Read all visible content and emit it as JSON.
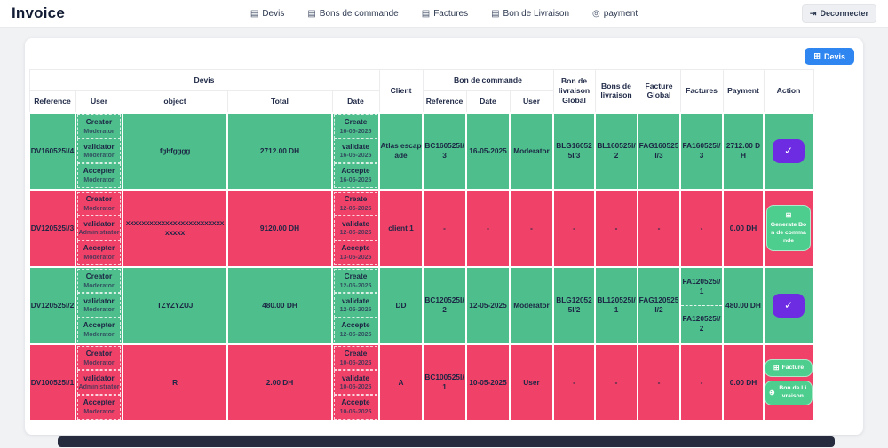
{
  "navbar": {
    "title": "Invoice",
    "items": [
      {
        "label": "Devis",
        "icon": "document"
      },
      {
        "label": "Bons de commande",
        "icon": "document"
      },
      {
        "label": "Factures",
        "icon": "document"
      },
      {
        "label": "Bon de Livraison",
        "icon": "document"
      },
      {
        "label": "payment",
        "icon": "coin"
      }
    ],
    "logout": {
      "label": "Deconnecter",
      "icon": "logout"
    }
  },
  "toolbar": {
    "new_devis_label": "Devis",
    "icon": "plus-square"
  },
  "colors": {
    "green_row": "#4dbe8c",
    "pink_row": "#f04169",
    "purple_button": "#6d2be2",
    "blue_button": "#2f86f0",
    "action_green_button": "#4ece8e",
    "navy_text": "#1c2644"
  },
  "table": {
    "headers": {
      "devis_group": "Devis",
      "client": "Client",
      "bc_group": "Bon de commande",
      "devis_cols": {
        "reference": "Reference",
        "user": "User",
        "object": "object",
        "total": "Total",
        "date": "Date"
      },
      "bc_cols": {
        "reference": "Reference",
        "date": "Date",
        "user": "User"
      },
      "blg": "Bon de livraison Global",
      "bl": "Bons de livraison",
      "fag": "Facture Global",
      "factures": "Factures",
      "payment": "Payment",
      "action": "Action"
    },
    "rows": [
      {
        "tone": "green",
        "reference": "DV160525I/4",
        "users": [
          {
            "role": "Creator",
            "name": "Moderator"
          },
          {
            "role": "validator",
            "name": "Moderator"
          },
          {
            "role": "Accepter",
            "name": "Moderator"
          }
        ],
        "object": "fghfgggg",
        "total": "2712.00 DH",
        "dates": [
          {
            "label": "Create",
            "date": "16-05-2025"
          },
          {
            "label": "validate",
            "date": "16-05-2025"
          },
          {
            "label": "Accepte",
            "date": "16-05-2025"
          }
        ],
        "client": "Atlas escapade",
        "bc": {
          "reference": "BC160525I/3",
          "date": "16-05-2025",
          "user": "Moderator"
        },
        "bl_global": "BLG160525I/3",
        "bls": "BL160525I/2",
        "facture_global": "FAG160525I/3",
        "factures": [
          "FA160525I/3"
        ],
        "payment": "2712.00 DH",
        "actions": [
          {
            "kind": "check",
            "icon": "check",
            "name": "validated-button"
          }
        ]
      },
      {
        "tone": "pink",
        "reference": "DV120525I/3",
        "users": [
          {
            "role": "Creator",
            "name": "Moderator"
          },
          {
            "role": "validator",
            "name": "Administrator"
          },
          {
            "role": "Accepter",
            "name": "Moderator"
          }
        ],
        "object": "xxxxxxxxxxxxxxxxxxxxxxxxxxxxxx",
        "total": "9120.00 DH",
        "dates": [
          {
            "label": "Create",
            "date": "12-05-2025"
          },
          {
            "label": "validate",
            "date": "12-05-2025"
          },
          {
            "label": "Accepte",
            "date": "13-05-2025"
          }
        ],
        "client": "client 1",
        "bc": {
          "reference": "-",
          "date": "-",
          "user": "-"
        },
        "bl_global": "-",
        "bls": "-",
        "facture_global": "-",
        "factures": [
          "-"
        ],
        "payment": "0.00 DH",
        "actions": [
          {
            "kind": "panel",
            "icon": "plus-square",
            "label": "Generate Bon de commande",
            "variant": "stacked",
            "name": "generate-bon-de-commande-button"
          }
        ]
      },
      {
        "tone": "green",
        "reference": "DV120525I/2",
        "users": [
          {
            "role": "Creator",
            "name": "Moderator"
          },
          {
            "role": "validator",
            "name": "Moderator"
          },
          {
            "role": "Accepter",
            "name": "Moderator"
          }
        ],
        "object": "TZYZYZUJ",
        "total": "480.00 DH",
        "dates": [
          {
            "label": "Create",
            "date": "12-05-2025"
          },
          {
            "label": "validate",
            "date": "12-05-2025"
          },
          {
            "label": "Accepte",
            "date": "12-05-2025"
          }
        ],
        "client": "DD",
        "bc": {
          "reference": "BC120525I/2",
          "date": "12-05-2025",
          "user": "Moderator"
        },
        "bl_global": "BLG120525I/2",
        "bls": "BL120525I/1",
        "facture_global": "FAG120525I/2",
        "factures": [
          "FA120525I/1",
          "FA120525I/2"
        ],
        "payment": "480.00 DH",
        "actions": [
          {
            "kind": "check",
            "icon": "check",
            "name": "validated-button"
          }
        ]
      },
      {
        "tone": "pink",
        "reference": "DV100525I/1",
        "users": [
          {
            "role": "Creator",
            "name": "Moderator"
          },
          {
            "role": "validator",
            "name": "Administrator"
          },
          {
            "role": "Accepter",
            "name": "Moderator"
          }
        ],
        "object": "R",
        "total": "2.00 DH",
        "dates": [
          {
            "label": "Create",
            "date": "10-05-2025"
          },
          {
            "label": "validate",
            "date": "10-05-2025"
          },
          {
            "label": "Accepte",
            "date": "10-05-2025"
          }
        ],
        "client": "A",
        "bc": {
          "reference": "BC100525I/1",
          "date": "10-05-2025",
          "user": "User"
        },
        "bl_global": "-",
        "bls": "-",
        "facture_global": "-",
        "factures": [
          "-"
        ],
        "payment": "0.00 DH",
        "actions": [
          {
            "kind": "panel",
            "icon": "plus-square",
            "label": "Facture",
            "variant": "inline",
            "name": "generate-facture-button"
          },
          {
            "kind": "panel",
            "icon": "plus-circle",
            "label": "Bon de Livraison",
            "variant": "inline",
            "name": "generate-bon-de-livraison-button"
          }
        ]
      }
    ]
  }
}
